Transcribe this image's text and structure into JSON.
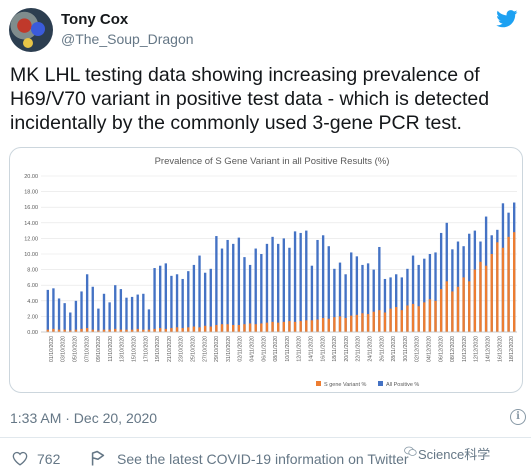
{
  "tweet": {
    "author_name": "Tony Cox",
    "author_handle": "@The_Soup_Dragon",
    "text_lines": [
      "MK LHL testing data showing increasing prevalence of",
      "H69/V70 variant in positive test data - which is detected",
      "incidentally by the commonly used 3-gene PCR test."
    ],
    "timestamp": "1:33 AM · Dec 20, 2020",
    "like_count": "762",
    "covid_info": "See the latest COVID-19 information on Twitter",
    "watermark": "Science科学"
  },
  "icons": {
    "brand": "twitter-bird-icon",
    "like": "heart-icon",
    "info": "info-icon",
    "covid": "covid-info-icon"
  },
  "colors": {
    "twitter_blue": "#1da1f2",
    "series_all_positive": "#4472c4",
    "series_s_gene": "#ed7d31"
  },
  "chart_data": {
    "type": "bar",
    "title": "Prevalence of S Gene Variant in all Positive Results (%)",
    "ylim": [
      0,
      20
    ],
    "yticks": [
      "0.00",
      "2.00",
      "4.00",
      "6.00",
      "8.00",
      "10.00",
      "12.00",
      "14.00",
      "16.00",
      "18.00",
      "20.00"
    ],
    "xtick_labels": [
      "01/10/2020",
      "03/10/2020",
      "05/10/2020",
      "07/10/2020",
      "09/10/2020",
      "11/10/2020",
      "13/10/2020",
      "15/10/2020",
      "17/10/2020",
      "19/10/2020",
      "21/10/2020",
      "23/10/2020",
      "25/10/2020",
      "27/10/2020",
      "29/10/2020",
      "31/10/2020",
      "02/11/2020",
      "04/11/2020",
      "06/11/2020",
      "08/11/2020",
      "10/11/2020",
      "12/11/2020",
      "14/11/2020",
      "16/11/2020",
      "18/11/2020",
      "20/11/2020",
      "22/11/2020",
      "24/11/2020",
      "26/11/2020",
      "28/11/2020",
      "30/11/2020",
      "02/12/2020",
      "04/12/2020",
      "06/12/2020",
      "08/12/2020",
      "10/12/2020",
      "12/12/2020",
      "14/12/2020",
      "16/12/2020",
      "18/12/2020"
    ],
    "legend_position": "bottom-right",
    "series": [
      {
        "name": "S gene Variant %",
        "values": [
          0.3,
          0.4,
          0.3,
          0.3,
          0.2,
          0.3,
          0.4,
          0.5,
          0.3,
          0.2,
          0.3,
          0.3,
          0.4,
          0.3,
          0.3,
          0.3,
          0.4,
          0.3,
          0.3,
          0.4,
          0.5,
          0.4,
          0.5,
          0.6,
          0.5,
          0.6,
          0.7,
          0.6,
          0.8,
          0.7,
          0.9,
          1.0,
          1.0,
          0.9,
          0.9,
          1.0,
          1.1,
          1.0,
          1.1,
          1.2,
          1.3,
          1.2,
          1.3,
          1.4,
          1.3,
          1.4,
          1.5,
          1.5,
          1.6,
          1.8,
          1.7,
          1.9,
          2.0,
          1.8,
          2.1,
          2.2,
          2.4,
          2.3,
          2.6,
          2.8,
          2.5,
          3.0,
          3.2,
          2.8,
          3.4,
          3.6,
          3.3,
          3.8,
          4.2,
          4.0,
          5.5,
          6.5,
          5.2,
          5.8,
          7.0,
          6.5,
          8.0,
          9.0,
          8.5,
          10.0,
          11.5,
          10.8,
          12.2,
          12.8
        ]
      },
      {
        "name": "All Positive %",
        "values": [
          5.4,
          5.6,
          4.3,
          3.7,
          2.5,
          4.0,
          5.2,
          7.4,
          5.8,
          3.0,
          4.9,
          3.8,
          6.0,
          5.5,
          4.4,
          4.5,
          4.8,
          4.9,
          2.9,
          8.2,
          8.5,
          8.8,
          7.2,
          7.4,
          6.8,
          7.8,
          8.6,
          9.8,
          7.6,
          8.1,
          12.3,
          10.7,
          11.8,
          11.3,
          12.1,
          9.6,
          8.6,
          10.7,
          10.0,
          11.3,
          12.2,
          11.3,
          12.0,
          10.8,
          12.9,
          12.7,
          13.0,
          8.5,
          11.8,
          12.4,
          11.0,
          8.1,
          8.9,
          7.4,
          10.2,
          9.7,
          8.6,
          8.8,
          8.0,
          10.9,
          6.8,
          7.0,
          7.4,
          7.0,
          8.1,
          9.8,
          8.6,
          9.4,
          10.0,
          10.2,
          12.7,
          14.0,
          10.6,
          11.6,
          11.0,
          12.6,
          13.0,
          11.6,
          14.8,
          12.4,
          13.1,
          16.5,
          15.3,
          16.6
        ]
      }
    ]
  }
}
